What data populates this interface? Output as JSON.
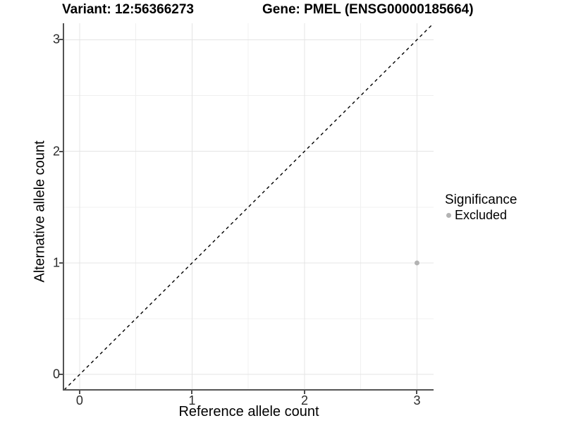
{
  "chart_data": {
    "type": "scatter",
    "title_left": "Variant: 12:56366273",
    "title_right": "Gene: PMEL (ENSG00000185664)",
    "xlabel": "Reference allele count",
    "ylabel": "Alternative allele count",
    "xlim": [
      -0.1375,
      3.1475
    ],
    "ylim": [
      -0.1375,
      3.1475
    ],
    "xticks": [
      0,
      1,
      2,
      3
    ],
    "yticks": [
      0,
      1,
      2,
      3
    ],
    "xticks_minor": [
      0.5,
      1.5,
      2.5
    ],
    "yticks_minor": [
      0.5,
      1.5,
      2.5
    ],
    "grid": true,
    "identity_line": {
      "type": "abline",
      "slope": 1,
      "intercept": 0,
      "style": "dashed",
      "color": "#000000"
    },
    "series": [
      {
        "name": "Excluded",
        "color": "#b3b3b3",
        "points": [
          {
            "x": 3,
            "y": 1
          }
        ]
      }
    ],
    "legend": {
      "title": "Significance",
      "position": "right",
      "items": [
        {
          "label": "Excluded",
          "color": "#b3b3b3"
        }
      ]
    },
    "colors": {
      "background": "#ffffff",
      "axis_line": "#545454",
      "tick_mark": "#4d4d4d",
      "grid_major": "#e4e4e4",
      "grid_minor": "#f0f0f0",
      "point": "#b3b3b3",
      "text": "#000000"
    }
  }
}
